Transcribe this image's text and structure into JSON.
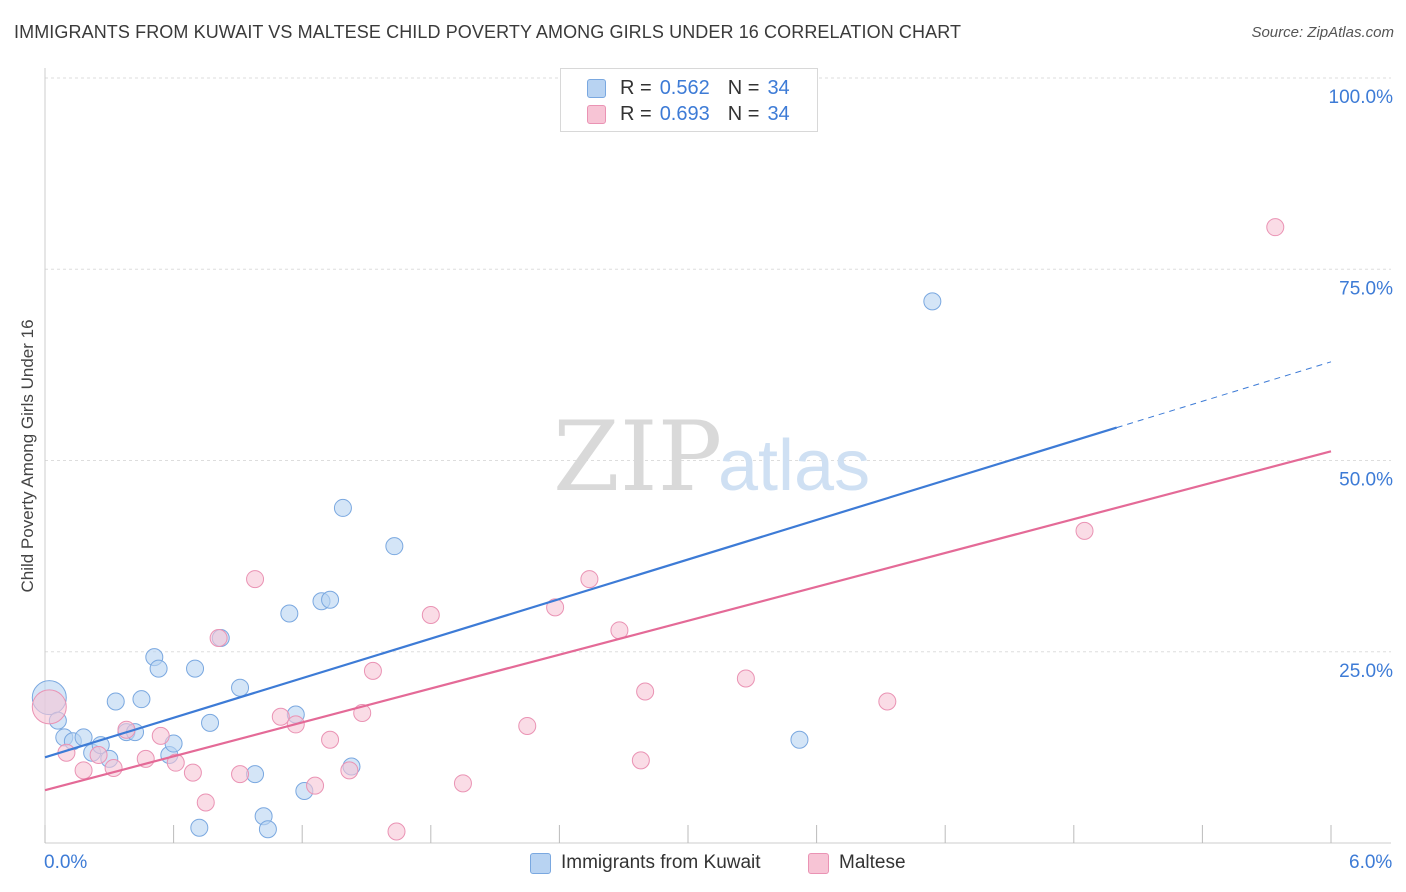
{
  "title": "IMMIGRANTS FROM KUWAIT VS MALTESE CHILD POVERTY AMONG GIRLS UNDER 16 CORRELATION CHART",
  "source": "Source: ZipAtlas.com",
  "watermark": {
    "zip": "ZIP",
    "atlas": "atlas"
  },
  "legend": {
    "r_label": "R =",
    "n_label": "N =",
    "series1": {
      "r": "0.562",
      "n": "34"
    },
    "series2": {
      "r": "0.693",
      "n": "34"
    }
  },
  "colors": {
    "blue": "#3d7bd6",
    "blue_fill": "#b8d3f2",
    "blue_stroke": "#7aa8e0",
    "pink": "#e46a97",
    "pink_fill": "#f7c4d5",
    "pink_stroke": "#ea93b4",
    "axis_text": "#3d7bd6",
    "grid": "#dddddd"
  },
  "chart_data": {
    "type": "scatter",
    "title": "IMMIGRANTS FROM KUWAIT VS MALTESE CHILD POVERTY AMONG GIRLS UNDER 16 CORRELATION CHART",
    "xlabel": "",
    "ylabel": "Child Poverty Among Girls Under 16",
    "xlim": [
      0,
      6
    ],
    "ylim": [
      0,
      100
    ],
    "x_tick_labels": [
      "0.0%",
      "6.0%"
    ],
    "y_ticks": [
      25,
      50,
      75,
      100
    ],
    "y_tick_labels": [
      "25.0%",
      "50.0%",
      "75.0%",
      "100.0%"
    ],
    "legend_position": "bottom",
    "series": [
      {
        "name": "Immigrants from Kuwait",
        "r": 0.562,
        "n": 34,
        "trend": {
          "x0": 0,
          "y0": 11.2,
          "x1": 5.0,
          "y1": 54.3,
          "dashed_to_x": 6.0,
          "dashed_to_y": 62.9
        },
        "points": [
          {
            "x": 0.02,
            "y": 19.0,
            "big": true
          },
          {
            "x": 0.06,
            "y": 16.0
          },
          {
            "x": 0.09,
            "y": 13.8
          },
          {
            "x": 0.13,
            "y": 13.3
          },
          {
            "x": 0.18,
            "y": 13.8
          },
          {
            "x": 0.22,
            "y": 11.8
          },
          {
            "x": 0.26,
            "y": 12.8
          },
          {
            "x": 0.3,
            "y": 11.0
          },
          {
            "x": 0.33,
            "y": 18.5
          },
          {
            "x": 0.38,
            "y": 14.5
          },
          {
            "x": 0.42,
            "y": 14.5
          },
          {
            "x": 0.45,
            "y": 18.8
          },
          {
            "x": 0.51,
            "y": 24.3
          },
          {
            "x": 0.53,
            "y": 22.8
          },
          {
            "x": 0.58,
            "y": 11.5
          },
          {
            "x": 0.6,
            "y": 13.0
          },
          {
            "x": 0.7,
            "y": 22.8
          },
          {
            "x": 0.77,
            "y": 15.7
          },
          {
            "x": 0.82,
            "y": 26.8
          },
          {
            "x": 0.91,
            "y": 20.3
          },
          {
            "x": 0.98,
            "y": 9.0
          },
          {
            "x": 1.14,
            "y": 30.0
          },
          {
            "x": 1.17,
            "y": 16.8
          },
          {
            "x": 1.21,
            "y": 6.8
          },
          {
            "x": 1.29,
            "y": 31.6
          },
          {
            "x": 1.33,
            "y": 31.8
          },
          {
            "x": 1.39,
            "y": 43.8
          },
          {
            "x": 1.43,
            "y": 10.0
          },
          {
            "x": 1.63,
            "y": 38.8
          },
          {
            "x": 0.72,
            "y": 2.0
          },
          {
            "x": 1.02,
            "y": 3.5
          },
          {
            "x": 1.04,
            "y": 1.8
          },
          {
            "x": 3.52,
            "y": 13.5
          },
          {
            "x": 4.14,
            "y": 70.8
          }
        ]
      },
      {
        "name": "Maltese",
        "r": 0.693,
        "n": 34,
        "trend": {
          "x0": 0,
          "y0": 6.9,
          "x1": 6.0,
          "y1": 51.2
        },
        "points": [
          {
            "x": 0.02,
            "y": 17.8,
            "big": true
          },
          {
            "x": 0.1,
            "y": 11.8
          },
          {
            "x": 0.18,
            "y": 9.5
          },
          {
            "x": 0.25,
            "y": 11.5
          },
          {
            "x": 0.32,
            "y": 9.8
          },
          {
            "x": 0.38,
            "y": 14.8
          },
          {
            "x": 0.47,
            "y": 11.0
          },
          {
            "x": 0.54,
            "y": 14.0
          },
          {
            "x": 0.61,
            "y": 10.5
          },
          {
            "x": 0.69,
            "y": 9.2
          },
          {
            "x": 0.75,
            "y": 5.3
          },
          {
            "x": 0.81,
            "y": 26.8
          },
          {
            "x": 0.91,
            "y": 9.0
          },
          {
            "x": 0.98,
            "y": 34.5
          },
          {
            "x": 1.1,
            "y": 16.5
          },
          {
            "x": 1.17,
            "y": 15.5
          },
          {
            "x": 1.26,
            "y": 7.5
          },
          {
            "x": 1.33,
            "y": 13.5
          },
          {
            "x": 1.42,
            "y": 9.5
          },
          {
            "x": 1.48,
            "y": 17.0
          },
          {
            "x": 1.53,
            "y": 22.5
          },
          {
            "x": 1.64,
            "y": 1.5
          },
          {
            "x": 1.8,
            "y": 29.8
          },
          {
            "x": 1.95,
            "y": 7.8
          },
          {
            "x": 2.25,
            "y": 15.3
          },
          {
            "x": 2.38,
            "y": 30.8
          },
          {
            "x": 2.54,
            "y": 34.5
          },
          {
            "x": 2.68,
            "y": 27.8
          },
          {
            "x": 2.78,
            "y": 10.8
          },
          {
            "x": 2.8,
            "y": 19.8
          },
          {
            "x": 3.27,
            "y": 21.5
          },
          {
            "x": 3.93,
            "y": 18.5
          },
          {
            "x": 4.85,
            "y": 40.8
          },
          {
            "x": 5.74,
            "y": 80.5
          }
        ]
      }
    ]
  }
}
